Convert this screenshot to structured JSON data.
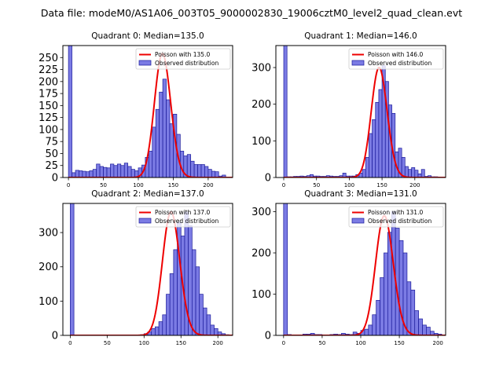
{
  "figure": {
    "title": "Data file: modeM0/AS1A06_003T05_9000002830_19006cztM0_level2_quad_clean.evt"
  },
  "colors": {
    "bar_fill": "#7b7be4",
    "bar_edge": "#1a1a9a",
    "fit_line": "#ee0000"
  },
  "chart_data": [
    {
      "type": "bar",
      "title": "Quadrant 0: Median=135.0",
      "xlim": [
        -8,
        235
      ],
      "ylim": [
        0,
        275
      ],
      "xticks": [
        0,
        50,
        100,
        150,
        200
      ],
      "yticks": [
        0,
        25,
        50,
        75,
        100,
        125,
        150,
        175,
        200,
        225,
        250
      ],
      "bin_width": 5,
      "bins_start": [
        0,
        5,
        10,
        15,
        20,
        25,
        30,
        35,
        40,
        45,
        50,
        55,
        60,
        65,
        70,
        75,
        80,
        85,
        90,
        95,
        100,
        105,
        110,
        115,
        120,
        125,
        130,
        135,
        140,
        145,
        150,
        155,
        160,
        165,
        170,
        175,
        180,
        185,
        190,
        195,
        200,
        205,
        210,
        215,
        220
      ],
      "values": [
        275,
        10,
        15,
        14,
        13,
        12,
        14,
        17,
        28,
        23,
        21,
        20,
        28,
        25,
        28,
        25,
        30,
        23,
        17,
        14,
        20,
        26,
        42,
        55,
        105,
        142,
        178,
        205,
        162,
        112,
        132,
        90,
        55,
        45,
        48,
        34,
        27,
        27,
        27,
        23,
        17,
        13,
        12,
        3,
        5
      ],
      "fit": {
        "type": "poisson",
        "lambda": 135,
        "peak": 258
      },
      "legend": {
        "fit_label": "Poisson with 135.0",
        "observed_label": "Observed distribution",
        "position": "upper right"
      }
    },
    {
      "type": "bar",
      "title": "Quadrant 1: Median=146.0",
      "xlim": [
        -12,
        247
      ],
      "ylim": [
        0,
        360
      ],
      "xticks": [
        0,
        50,
        100,
        150,
        200
      ],
      "yticks": [
        0,
        100,
        200,
        300
      ],
      "bin_width": 5,
      "bins_start": [
        0,
        5,
        10,
        15,
        20,
        25,
        30,
        35,
        40,
        45,
        50,
        55,
        60,
        65,
        70,
        75,
        80,
        85,
        90,
        95,
        100,
        105,
        110,
        115,
        120,
        125,
        130,
        135,
        140,
        145,
        150,
        155,
        160,
        165,
        170,
        175,
        180,
        185,
        190,
        195,
        200,
        205,
        210,
        215,
        220,
        225,
        230
      ],
      "values": [
        360,
        2,
        2,
        3,
        3,
        4,
        3,
        5,
        8,
        4,
        4,
        3,
        3,
        5,
        4,
        3,
        3,
        5,
        12,
        4,
        4,
        4,
        8,
        12,
        22,
        55,
        120,
        158,
        205,
        240,
        305,
        262,
        198,
        175,
        70,
        80,
        55,
        30,
        22,
        27,
        20,
        10,
        22,
        3,
        5,
        2,
        2
      ],
      "fit": {
        "type": "poisson",
        "lambda": 146,
        "peak": 300
      },
      "legend": {
        "fit_label": "Poisson with 146.0",
        "observed_label": "Observed distribution",
        "position": "upper right"
      }
    },
    {
      "type": "bar",
      "title": "Quadrant 2: Median=137.0",
      "xlim": [
        -10,
        220
      ],
      "ylim": [
        0,
        385
      ],
      "xticks": [
        0,
        50,
        100,
        150,
        200
      ],
      "yticks": [
        0,
        100,
        200,
        300
      ],
      "bin_width": 5,
      "bins_start": [
        0,
        5,
        10,
        15,
        20,
        25,
        30,
        35,
        40,
        45,
        50,
        55,
        60,
        65,
        70,
        75,
        80,
        85,
        90,
        95,
        100,
        105,
        110,
        115,
        120,
        125,
        130,
        135,
        140,
        145,
        150,
        155,
        160,
        165,
        170,
        175,
        180,
        185,
        190,
        195,
        200,
        205,
        210
      ],
      "values": [
        385,
        0,
        0,
        0,
        0,
        0,
        0,
        0,
        0,
        0,
        0,
        0,
        0,
        0,
        0,
        0,
        0,
        0,
        1,
        2,
        5,
        10,
        20,
        25,
        40,
        60,
        120,
        180,
        250,
        330,
        290,
        360,
        320,
        250,
        200,
        120,
        80,
        60,
        30,
        20,
        10,
        5,
        2
      ],
      "fit": {
        "type": "poisson",
        "lambda": 137,
        "peak": 360
      },
      "legend": {
        "fit_label": "Poisson with 137.0",
        "observed_label": "Observed distribution",
        "position": "upper right"
      }
    },
    {
      "type": "bar",
      "title": "Quadrant 3: Median=131.0",
      "xlim": [
        -10,
        210
      ],
      "ylim": [
        0,
        320
      ],
      "xticks": [
        0,
        50,
        100,
        150,
        200
      ],
      "yticks": [
        0,
        100,
        200,
        300
      ],
      "bin_width": 5,
      "bins_start": [
        0,
        5,
        10,
        15,
        20,
        25,
        30,
        35,
        40,
        45,
        50,
        55,
        60,
        65,
        70,
        75,
        80,
        85,
        90,
        95,
        100,
        105,
        110,
        115,
        120,
        125,
        130,
        135,
        140,
        145,
        150,
        155,
        160,
        165,
        170,
        175,
        180,
        185,
        190,
        195,
        200
      ],
      "values": [
        320,
        2,
        1,
        1,
        1,
        3,
        3,
        5,
        2,
        2,
        1,
        1,
        2,
        3,
        2,
        5,
        3,
        2,
        8,
        5,
        12,
        15,
        25,
        50,
        85,
        140,
        200,
        250,
        300,
        260,
        230,
        200,
        130,
        110,
        60,
        40,
        25,
        20,
        10,
        5,
        3
      ],
      "fit": {
        "type": "poisson",
        "lambda": 131,
        "peak": 290
      },
      "legend": {
        "fit_label": "Poisson with 131.0",
        "observed_label": "Observed distribution",
        "position": "upper right"
      }
    }
  ]
}
